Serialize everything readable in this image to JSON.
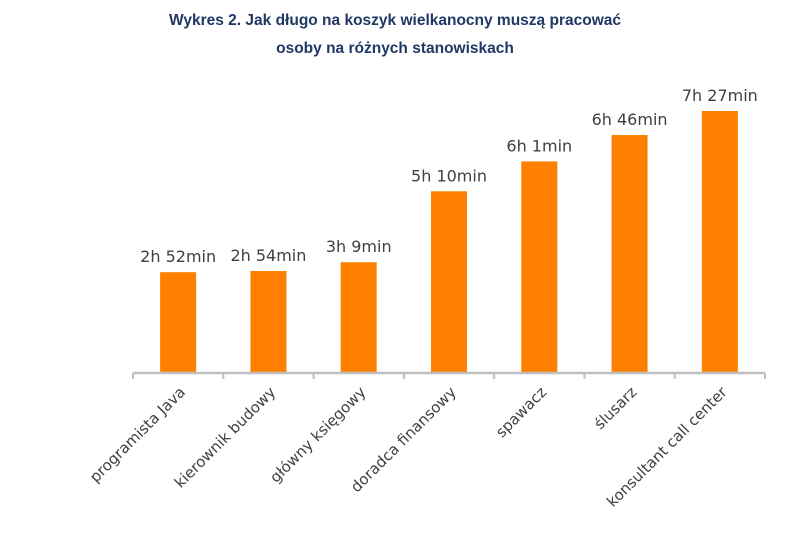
{
  "chart_data": {
    "type": "bar",
    "title_line1": "Wykres 2. Jak długo na koszyk wielkanocny muszą pracować",
    "title_line2": "osoby na różnych stanowiskach",
    "categories": [
      "programista Java",
      "kierownik budowy",
      "główny księgowy",
      "doradca finansowy",
      "spawacz",
      "ślusarz",
      "konsultant call center"
    ],
    "values": [
      172,
      174,
      189,
      310,
      361,
      406,
      447
    ],
    "value_unit": "minutes",
    "data_labels": [
      "2h 52min",
      "2h 54min",
      "3h 9min",
      "5h 10min",
      "6h 1min",
      "6h 46min",
      "7h 27min"
    ],
    "xlabel": "",
    "ylabel": "",
    "ylim": [
      0,
      447
    ],
    "grid": false,
    "legend": "none",
    "colors": {
      "bar": "#ff7f00",
      "axis": "#bfbfbf",
      "title": "#1f3864",
      "text": "#404040"
    }
  }
}
